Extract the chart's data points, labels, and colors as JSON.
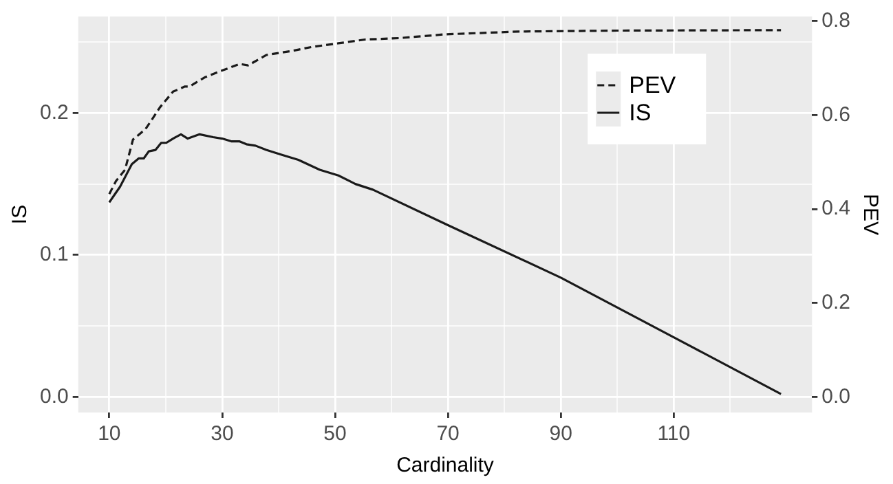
{
  "chart_data": {
    "type": "line",
    "xlabel": "Cardinality",
    "ylabel": "IS",
    "y2label": "PEV",
    "xlim": [
      4.5,
      134.5
    ],
    "xticks": [
      10,
      {
        "value": 20,
        "label": null
      },
      30,
      {
        "value": 40,
        "label": null
      },
      50,
      {
        "value": 60,
        "label": null
      },
      70,
      {
        "value": 80,
        "label": null
      },
      90,
      {
        "value": 100,
        "label": null
      },
      110,
      {
        "value": 120,
        "label": null
      }
    ],
    "ylim": [
      -0.011,
      0.268
    ],
    "yticks": [
      {
        "value": 0,
        "label": "0.0"
      },
      {
        "value": 0.05,
        "label": null
      },
      {
        "value": 0.1,
        "label": "0.1"
      },
      {
        "value": 0.15,
        "label": null
      },
      {
        "value": 0.2,
        "label": "0.2"
      },
      {
        "value": 0.25,
        "label": null
      }
    ],
    "y2lim": [
      -0.033,
      0.81
    ],
    "y2ticks": [
      {
        "value": 0,
        "label": "0.0"
      },
      {
        "value": 0.2,
        "label": "0.2"
      },
      {
        "value": 0.4,
        "label": "0.4"
      },
      {
        "value": 0.6,
        "label": "0.6"
      },
      {
        "value": 0.8,
        "label": "0.8"
      }
    ],
    "grid": true,
    "legend": "top right",
    "marker": "none",
    "series": [
      {
        "name": "PEV",
        "color": "#1a1a1a",
        "axis": "y2",
        "line_style": "dashed",
        "x": [
          10,
          11.2,
          12.8,
          14.2,
          16.4,
          17.8,
          19,
          21.3,
          23.4,
          24.2,
          27,
          30,
          33.1,
          34.6,
          37.8,
          42.5,
          45.8,
          50.6,
          55.3,
          61.4,
          69.4,
          82.6,
          100,
          129
        ],
        "values": [
          0.432,
          0.46,
          0.484,
          0.548,
          0.57,
          0.595,
          0.617,
          0.65,
          0.661,
          0.661,
          0.681,
          0.695,
          0.709,
          0.706,
          0.728,
          0.737,
          0.745,
          0.753,
          0.761,
          0.764,
          0.772,
          0.778,
          0.78,
          0.781
        ]
      },
      {
        "name": "IS",
        "color": "#1a1a1a",
        "axis": "y",
        "line_style": "solid",
        "x": [
          10,
          11.2,
          11.9,
          14,
          15.2,
          16.1,
          17,
          18.2,
          19.2,
          20.1,
          21.3,
          22.7,
          23.9,
          26,
          28.4,
          30,
          31.7,
          33.1,
          34.3,
          35.9,
          37.8,
          40.2,
          43.5,
          47.3,
          50.6,
          53.6,
          56.7,
          70,
          90,
          110,
          129
        ],
        "values": [
          0.137,
          0.144,
          0.148,
          0.164,
          0.168,
          0.168,
          0.173,
          0.174,
          0.179,
          0.179,
          0.182,
          0.185,
          0.182,
          0.185,
          0.183,
          0.182,
          0.18,
          0.18,
          0.178,
          0.177,
          0.174,
          0.171,
          0.167,
          0.16,
          0.156,
          0.15,
          0.146,
          0.121,
          0.084,
          0.042,
          0.002
        ]
      }
    ]
  }
}
